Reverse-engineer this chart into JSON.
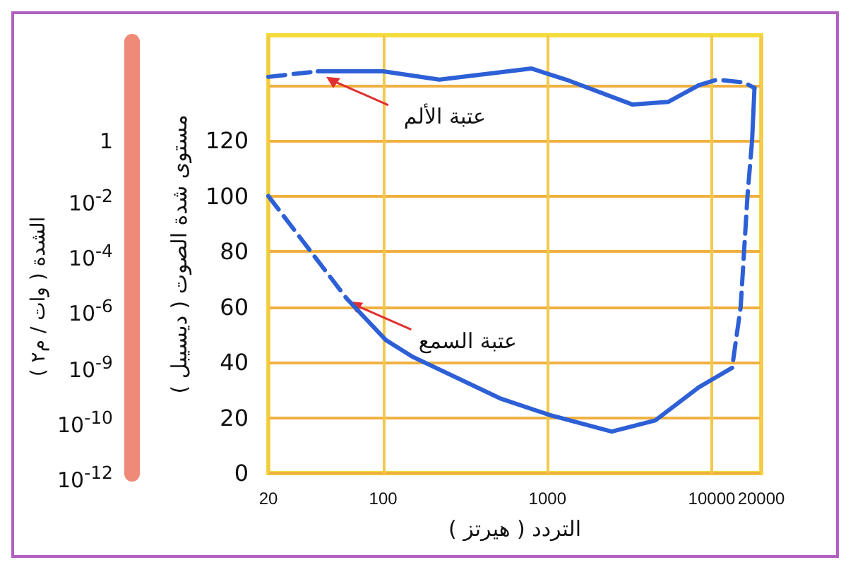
{
  "chart_data": {
    "type": "line",
    "xlabel": "التردد ( هيرتز )",
    "ylabel": "مستوى شدة الصوت ( ديسيبل )",
    "log": "x",
    "xlim": [
      20,
      20000
    ],
    "xticks": [
      20,
      100,
      1000,
      10000,
      20000
    ],
    "ylim": [
      0,
      158
    ],
    "yticks": [
      0,
      20,
      40,
      60,
      80,
      100,
      120,
      {
        "value": 140,
        "label": null
      }
    ],
    "grid": true,
    "series": [
      {
        "color": "#2d5fd6",
        "line_style": "dashed",
        "x": [
          20,
          40
        ],
        "values": [
          143,
          145
        ]
      },
      {
        "color": "#2d5fd6",
        "line_style": "solid",
        "x": [
          40,
          100,
          220,
          800,
          1300,
          3300,
          5450,
          8350
        ],
        "values": [
          145,
          145,
          142,
          146,
          142,
          133,
          134,
          140
        ]
      },
      {
        "color": "#2d5fd6",
        "line_style": "dashed",
        "x": [
          8350,
          10800,
          15700,
          18200
        ],
        "values": [
          140,
          142,
          141,
          139
        ]
      },
      {
        "color": "#2d5fd6",
        "line_style": "solid",
        "x": [
          18200,
          17600
        ],
        "values": [
          139,
          120
        ]
      },
      {
        "color": "#2d5fd6",
        "line_style": "dashed",
        "x": [
          17600,
          16500,
          15000,
          13300
        ],
        "values": [
          120,
          100,
          60,
          38
        ]
      },
      {
        "color": "#2d5fd6",
        "line_style": "solid",
        "x": [
          60,
          104,
          151,
          514,
          1030,
          2460,
          4530,
          8350,
          13300
        ],
        "values": [
          63,
          48,
          42,
          27,
          21,
          15,
          19,
          31,
          38
        ]
      },
      {
        "color": "#2d5fd6",
        "line_style": "dashed",
        "x": [
          20,
          60
        ],
        "values": [
          100,
          63
        ]
      }
    ],
    "annotations": [
      {
        "text": "عتبة الألم",
        "x": 45,
        "y": 143
      },
      {
        "text": "عتبة السمع",
        "x": 62,
        "y": 62
      },
      "الشدة ( وات / م٢ )",
      "1",
      "10$^{-2}$",
      "10$^{-4}$",
      "10$^{-6}$",
      "10$^{-9}$",
      "10$^{-10}$",
      "10$^{-12}$"
    ]
  }
}
